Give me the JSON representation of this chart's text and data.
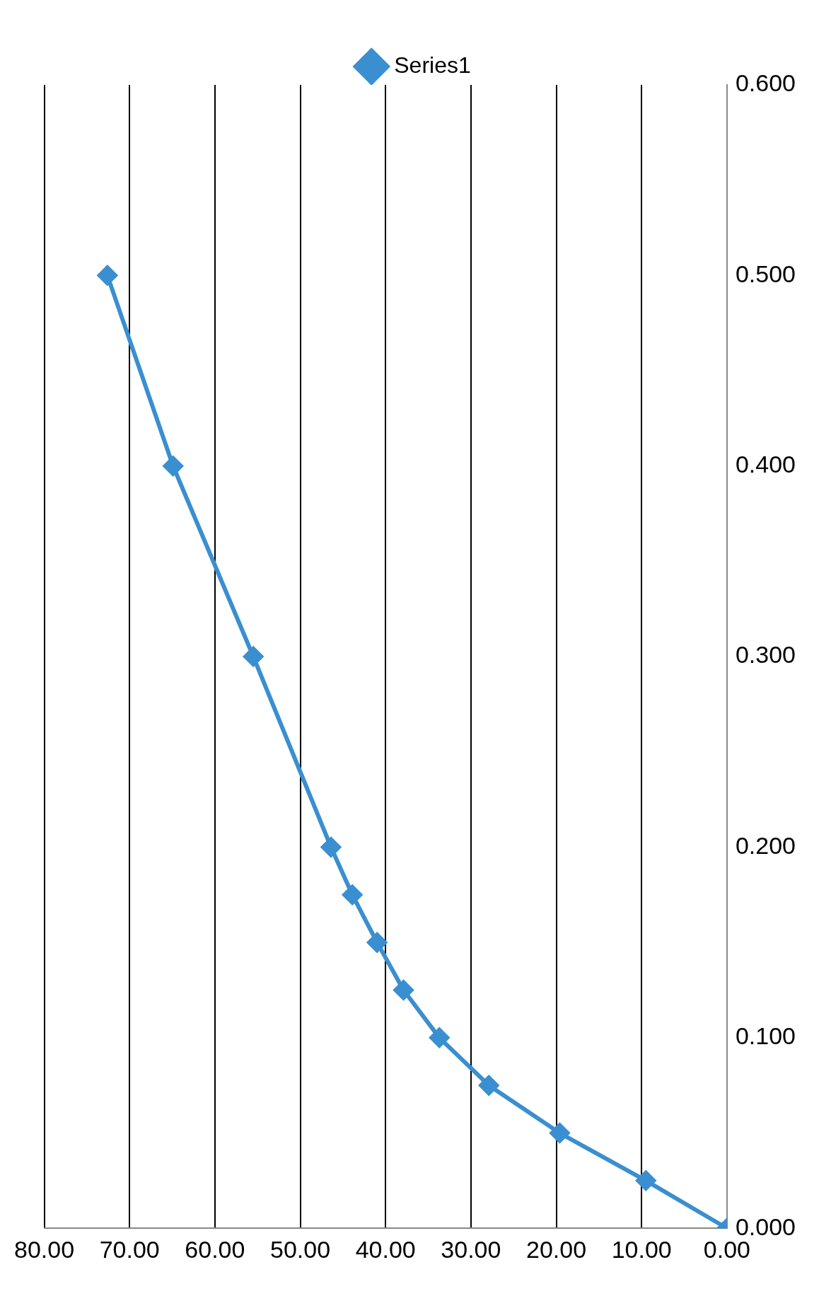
{
  "chart_data": {
    "type": "line",
    "x": [
      0,
      9.5,
      19.6,
      27.9,
      33.7,
      37.9,
      41,
      43.9,
      46.4,
      55.5,
      64.9,
      72.6
    ],
    "series": [
      {
        "name": "Series1",
        "color": "#3a8fd0",
        "values": [
          0,
          0.025,
          0.05,
          0.075,
          0.1,
          0.125,
          0.15,
          0.175,
          0.2,
          0.3,
          0.4,
          0.5
        ]
      }
    ],
    "xlim": [
      80,
      0
    ],
    "xticks": [
      {
        "value": 80,
        "label": "80.00"
      },
      {
        "value": 70,
        "label": "70.00"
      },
      {
        "value": 60,
        "label": "60.00"
      },
      {
        "value": 50,
        "label": "50.00"
      },
      {
        "value": 40,
        "label": "40.00"
      },
      {
        "value": 30,
        "label": "30.00"
      },
      {
        "value": 20,
        "label": "20.00"
      },
      {
        "value": 10,
        "label": "10.00"
      },
      {
        "value": 0,
        "label": "0.00"
      }
    ],
    "ylim": [
      0,
      0.6
    ],
    "yticks": [
      {
        "value": 0,
        "label": "0.000"
      },
      {
        "value": 0.1,
        "label": "0.100"
      },
      {
        "value": 0.2,
        "label": "0.200"
      },
      {
        "value": 0.3,
        "label": "0.300"
      },
      {
        "value": 0.4,
        "label": "0.400"
      },
      {
        "value": 0.5,
        "label": "0.500"
      },
      {
        "value": 0.6,
        "label": "0.600"
      }
    ],
    "grid": "x",
    "legend": "top",
    "marker": "diamond",
    "line_style": "solid"
  }
}
